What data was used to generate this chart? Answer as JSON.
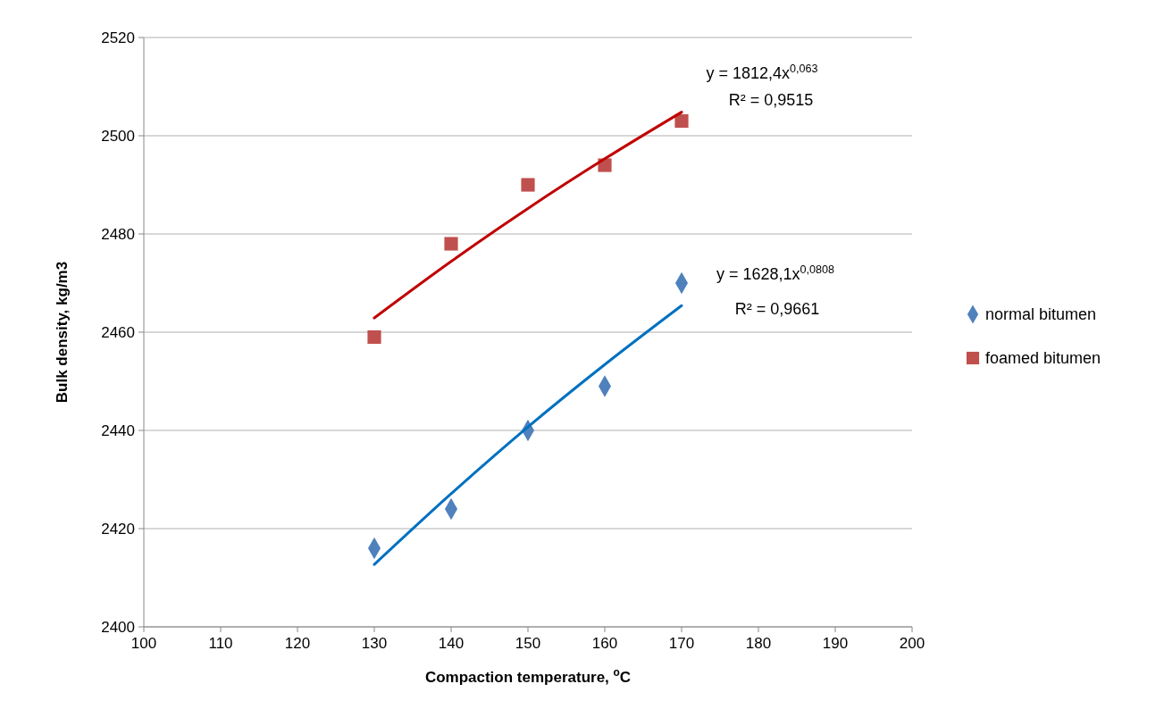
{
  "chart_data": {
    "type": "scatter",
    "xlabel": "Compaction temperature, $^{o}$C",
    "ylabel": "Bulk density, kg/m3",
    "xlim": [
      100,
      200
    ],
    "xticks": [
      100,
      110,
      120,
      130,
      140,
      150,
      160,
      170,
      180,
      190,
      200
    ],
    "ylim": [
      2400,
      2520
    ],
    "yticks": [
      2400,
      2420,
      2440,
      2460,
      2480,
      2500,
      2520
    ],
    "grid": "y",
    "legend": "right",
    "series": [
      {
        "name": "normal bitumen",
        "color": "#4f81bd",
        "marker": "diamond",
        "x": [
          130,
          140,
          150,
          160,
          170
        ],
        "values": [
          2416,
          2424,
          2440,
          2449,
          2470
        ]
      },
      {
        "name": "foamed bitumen",
        "color": "#c0504d",
        "marker": "square",
        "x": [
          130,
          140,
          150,
          160,
          170
        ],
        "values": [
          2459,
          2478,
          2490,
          2494,
          2503
        ]
      },
      {
        "type": "line",
        "color": "#0070c0",
        "marker": "none",
        "x": [
          130,
          140,
          150,
          160,
          170
        ],
        "values": [
          2412.7,
          2427.1,
          2440.7,
          2453.4,
          2465.4
        ]
      },
      {
        "type": "line",
        "color": "#c00000",
        "marker": "none",
        "x": [
          130,
          140,
          150,
          160,
          170
        ],
        "values": [
          2462.9,
          2474.4,
          2485.2,
          2495.3,
          2504.8
        ]
      }
    ],
    "annotations": [
      "y = 1812,4x$^{0,063}$",
      "R² = 0,9515",
      "y = 1628,1x$^{0,0808}$",
      "R² = 0,9661"
    ]
  }
}
